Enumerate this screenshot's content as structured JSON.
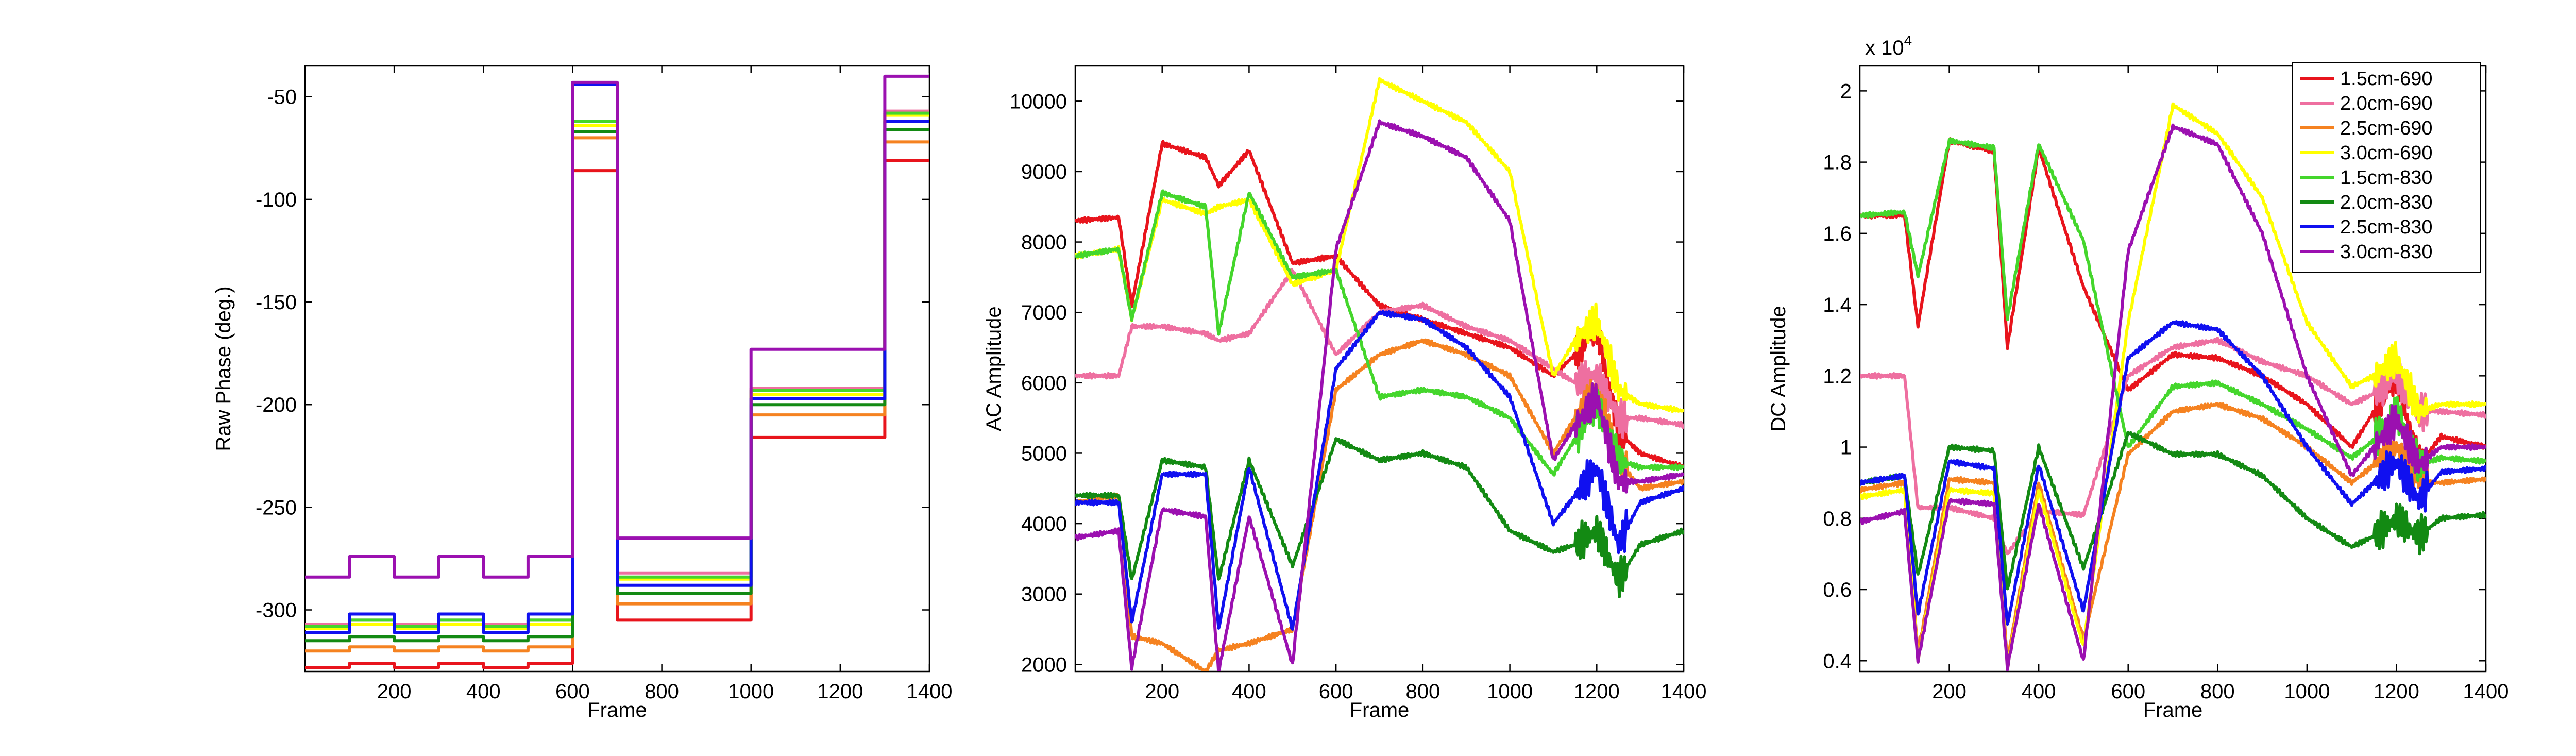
{
  "colors": {
    "1.5cm-690": "#e8141c",
    "2.0cm-690": "#ee6fa0",
    "2.5cm-690": "#f58220",
    "3.0cm-690": "#ffff00",
    "1.5cm-830": "#44d62c",
    "2.0cm-830": "#138a13",
    "2.5cm-830": "#1010f0",
    "3.0cm-830": "#9b10b0"
  },
  "chart_data": [
    {
      "type": "line",
      "xlabel": "Frame",
      "ylabel": "Raw Phase (deg.)",
      "xlim": [
        0,
        1400
      ],
      "ylim": [
        -330,
        -35
      ],
      "xticks": [
        200,
        400,
        600,
        800,
        1000,
        1200,
        1400
      ],
      "yticks": [
        -300,
        -250,
        -200,
        -150,
        -100,
        -50
      ],
      "x_segments": [
        0,
        100,
        200,
        300,
        400,
        500,
        600,
        700,
        1000,
        1300,
        1400
      ],
      "series": [
        {
          "name": "1.5cm-690",
          "values": [
            -328,
            -326,
            -328,
            -326,
            -328,
            -326,
            -86,
            -305,
            -216,
            -81
          ]
        },
        {
          "name": "2.0cm-690",
          "values": [
            -307,
            -305,
            -307,
            -305,
            -307,
            -305,
            -62,
            -282,
            -192,
            -57
          ]
        },
        {
          "name": "2.5cm-690",
          "values": [
            -320,
            -318,
            -320,
            -318,
            -320,
            -318,
            -70,
            -297,
            -205,
            -72
          ]
        },
        {
          "name": "3.0cm-690",
          "values": [
            -309,
            -307,
            -309,
            -307,
            -309,
            -307,
            -64,
            -285,
            -195,
            -59
          ]
        },
        {
          "name": "1.5cm-830",
          "values": [
            -308,
            -305,
            -308,
            -305,
            -308,
            -305,
            -62,
            -284,
            -193,
            -58
          ]
        },
        {
          "name": "2.0cm-830",
          "values": [
            -315,
            -313,
            -315,
            -313,
            -315,
            -313,
            -67,
            -292,
            -200,
            -66
          ]
        },
        {
          "name": "2.5cm-830",
          "values": [
            -311,
            -302,
            -311,
            -302,
            -311,
            -302,
            -44,
            -288,
            -197,
            -62
          ]
        },
        {
          "name": "3.0cm-830",
          "values": [
            -284,
            -274,
            -284,
            -274,
            -284,
            -274,
            -43,
            -265,
            -173,
            -40
          ]
        }
      ]
    },
    {
      "type": "line",
      "xlabel": "Frame",
      "ylabel": "AC Amplitude",
      "xlim": [
        0,
        1400
      ],
      "ylim": [
        1900,
        10500
      ],
      "xticks": [
        200,
        400,
        600,
        800,
        1000,
        1200,
        1400
      ],
      "yticks": [
        2000,
        3000,
        4000,
        5000,
        6000,
        7000,
        8000,
        9000,
        10000
      ],
      "x": [
        0,
        100,
        130,
        200,
        300,
        330,
        400,
        500,
        600,
        700,
        800,
        900,
        1000,
        1100,
        1150,
        1200,
        1250,
        1300,
        1400
      ],
      "series": [
        {
          "name": "1.5cm-690",
          "values": [
            8300,
            8350,
            7100,
            9400,
            9200,
            8800,
            9300,
            7700,
            7800,
            7100,
            6900,
            6700,
            6500,
            6100,
            6400,
            6800,
            5300,
            5000,
            4800
          ]
        },
        {
          "name": "2.0cm-690",
          "values": [
            6100,
            6100,
            6800,
            6800,
            6700,
            6600,
            6700,
            7600,
            6400,
            7000,
            7100,
            6800,
            6600,
            6200,
            6000,
            6100,
            5500,
            5500,
            5400
          ]
        },
        {
          "name": "2.5cm-690",
          "values": [
            4300,
            4400,
            2400,
            2300,
            1900,
            2200,
            2300,
            2500,
            5900,
            6400,
            6600,
            6400,
            6100,
            5000,
            5500,
            5900,
            4900,
            4500,
            4600
          ]
        },
        {
          "name": "3.0cm-690",
          "values": [
            7800,
            7900,
            6900,
            8600,
            8400,
            8500,
            8600,
            7400,
            7600,
            10300,
            10000,
            9700,
            9000,
            6100,
            6600,
            6900,
            5900,
            5700,
            5600
          ]
        },
        {
          "name": "1.5cm-830",
          "values": [
            7800,
            7900,
            6900,
            8700,
            8500,
            6700,
            8700,
            7500,
            7600,
            5800,
            5900,
            5800,
            5500,
            4700,
            5200,
            5700,
            4900,
            4800,
            4800
          ]
        },
        {
          "name": "2.0cm-830",
          "values": [
            4400,
            4400,
            3200,
            4900,
            4800,
            3200,
            4900,
            3400,
            5200,
            4900,
            5000,
            4800,
            3900,
            3600,
            3700,
            3900,
            3200,
            3700,
            3900
          ]
        },
        {
          "name": "2.5cm-830",
          "values": [
            4300,
            4300,
            2600,
            4700,
            4700,
            2500,
            4800,
            2500,
            6200,
            7000,
            6900,
            6500,
            5800,
            4000,
            4400,
            4800,
            3700,
            4300,
            4500
          ]
        },
        {
          "name": "3.0cm-830",
          "values": [
            3800,
            3900,
            1950,
            4200,
            4100,
            1900,
            4100,
            2000,
            7900,
            9700,
            9500,
            9200,
            8300,
            4900,
            5400,
            5800,
            4600,
            4600,
            4700
          ]
        }
      ]
    },
    {
      "type": "line",
      "xlabel": "Frame",
      "ylabel": "DC Amplitude",
      "exponent_prefix": "x 10",
      "exponent_power": "4",
      "xlim": [
        0,
        1400
      ],
      "ylim": [
        0.37,
        2.07
      ],
      "xticks": [
        200,
        400,
        600,
        800,
        1000,
        1200,
        1400
      ],
      "yticks": [
        0.4,
        0.6,
        0.8,
        1,
        1.2,
        1.4,
        1.6,
        1.8,
        2
      ],
      "x": [
        0,
        100,
        130,
        200,
        300,
        330,
        400,
        500,
        600,
        700,
        800,
        900,
        1000,
        1100,
        1150,
        1200,
        1250,
        1300,
        1400
      ],
      "series": [
        {
          "name": "1.5cm-690",
          "values": [
            1.65,
            1.65,
            1.34,
            1.86,
            1.83,
            1.28,
            1.84,
            1.45,
            1.16,
            1.26,
            1.25,
            1.2,
            1.12,
            1.0,
            1.1,
            1.2,
            0.95,
            1.03,
            1.0
          ]
        },
        {
          "name": "2.0cm-690",
          "values": [
            1.2,
            1.2,
            0.83,
            0.83,
            0.8,
            0.7,
            0.82,
            0.81,
            1.2,
            1.28,
            1.3,
            1.24,
            1.2,
            1.12,
            1.15,
            1.2,
            1.1,
            1.1,
            1.09
          ]
        },
        {
          "name": "2.5cm-690",
          "values": [
            0.88,
            0.9,
            0.42,
            0.91,
            0.9,
            0.4,
            0.9,
            0.46,
            0.98,
            1.1,
            1.12,
            1.08,
            1.0,
            0.9,
            0.95,
            1.0,
            0.9,
            0.9,
            0.91
          ]
        },
        {
          "name": "3.0cm-690",
          "values": [
            0.86,
            0.88,
            0.4,
            0.88,
            0.87,
            0.38,
            0.88,
            0.44,
            1.35,
            1.96,
            1.88,
            1.7,
            1.35,
            1.17,
            1.2,
            1.25,
            1.1,
            1.12,
            1.12
          ]
        },
        {
          "name": "1.5cm-830",
          "values": [
            1.65,
            1.66,
            1.48,
            1.86,
            1.84,
            1.36,
            1.85,
            1.58,
            1.0,
            1.17,
            1.18,
            1.12,
            1.05,
            0.97,
            1.02,
            1.1,
            0.95,
            0.97,
            0.96
          ]
        },
        {
          "name": "2.0cm-830",
          "values": [
            0.9,
            0.92,
            0.64,
            1.0,
            0.99,
            0.6,
            1.0,
            0.66,
            1.04,
            0.98,
            0.98,
            0.92,
            0.8,
            0.72,
            0.75,
            0.8,
            0.75,
            0.8,
            0.81
          ]
        },
        {
          "name": "2.5cm-830",
          "values": [
            0.9,
            0.92,
            0.53,
            0.96,
            0.94,
            0.5,
            0.95,
            0.54,
            1.25,
            1.35,
            1.33,
            1.2,
            1.0,
            0.84,
            0.9,
            0.96,
            0.85,
            0.93,
            0.94
          ]
        },
        {
          "name": "3.0cm-830",
          "values": [
            0.79,
            0.82,
            0.4,
            0.85,
            0.84,
            0.38,
            0.84,
            0.4,
            1.55,
            1.9,
            1.85,
            1.6,
            1.2,
            0.92,
            1.0,
            1.08,
            0.95,
            1.0,
            1.0
          ]
        }
      ],
      "legend": {
        "placement": "top-right",
        "entries": [
          "1.5cm-690",
          "2.0cm-690",
          "2.5cm-690",
          "3.0cm-690",
          "1.5cm-830",
          "2.0cm-830",
          "2.5cm-830",
          "3.0cm-830"
        ]
      }
    }
  ]
}
